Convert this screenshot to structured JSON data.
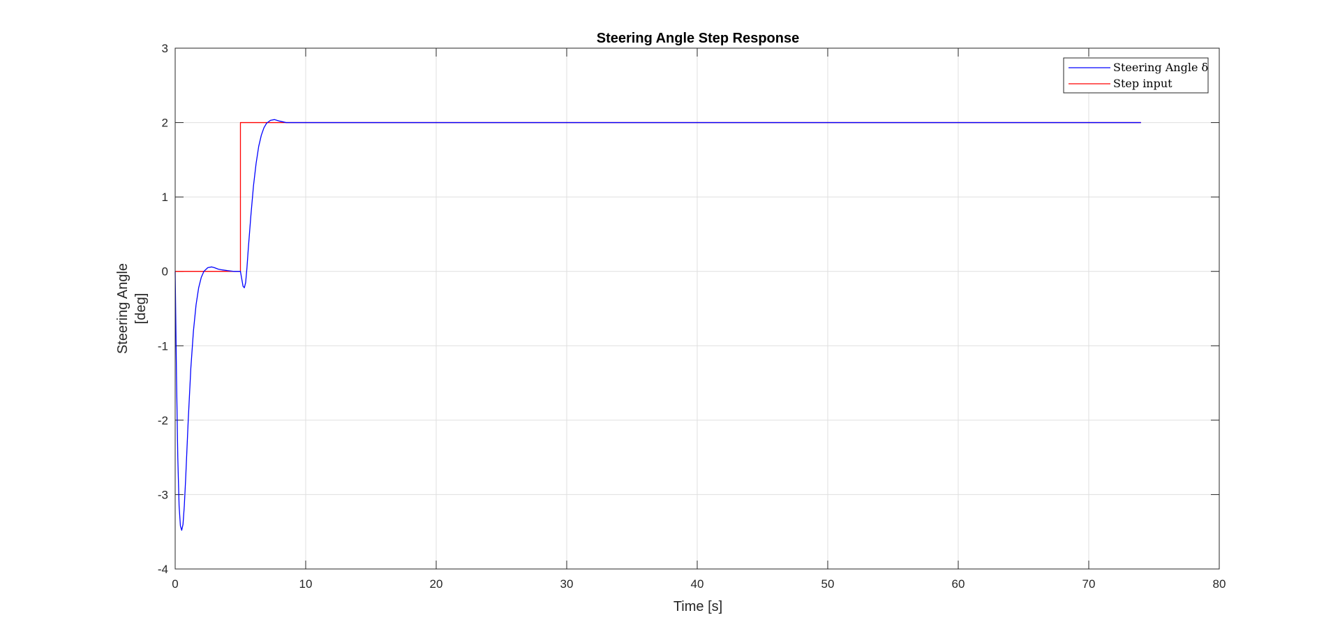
{
  "chart_data": {
    "type": "line",
    "title": "Steering Angle Step Response",
    "xlabel": "Time [s]",
    "ylabel_lines": [
      "Steering Angle",
      "[deg]"
    ],
    "xlim": [
      0,
      80
    ],
    "ylim": [
      -4,
      3
    ],
    "x_ticks": [
      0,
      10,
      20,
      30,
      40,
      50,
      60,
      70,
      80
    ],
    "y_ticks": [
      -4,
      -3,
      -2,
      -1,
      0,
      1,
      2,
      3
    ],
    "grid": true,
    "legend_position": "top-right",
    "series": [
      {
        "name": "Steering Angle δ",
        "color": "#0000ff",
        "x": [
          0,
          0.1,
          0.2,
          0.3,
          0.4,
          0.5,
          0.6,
          0.7,
          0.8,
          1.0,
          1.2,
          1.4,
          1.6,
          1.8,
          2.0,
          2.2,
          2.5,
          2.8,
          3.0,
          3.3,
          3.6,
          4.0,
          4.5,
          5.0,
          5.1,
          5.2,
          5.3,
          5.4,
          5.5,
          5.6,
          5.8,
          6.0,
          6.2,
          6.4,
          6.6,
          6.8,
          7.0,
          7.3,
          7.6,
          8.0,
          8.5,
          9.0,
          10,
          20,
          30,
          40,
          50,
          60,
          70,
          74
        ],
        "y": [
          0,
          -1.4,
          -2.5,
          -3.15,
          -3.42,
          -3.48,
          -3.4,
          -3.15,
          -2.8,
          -2.0,
          -1.3,
          -0.8,
          -0.45,
          -0.22,
          -0.08,
          0.0,
          0.05,
          0.06,
          0.05,
          0.03,
          0.02,
          0.01,
          0.0,
          0.0,
          -0.1,
          -0.2,
          -0.22,
          -0.15,
          0.05,
          0.3,
          0.75,
          1.15,
          1.45,
          1.68,
          1.83,
          1.93,
          1.99,
          2.03,
          2.04,
          2.02,
          2.0,
          2.0,
          2.0,
          2.0,
          2.0,
          2.0,
          2.0,
          2.0,
          2.0,
          2.0
        ]
      },
      {
        "name": "Step input",
        "color": "#ff0000",
        "x": [
          0,
          5,
          5,
          74
        ],
        "y": [
          0,
          0,
          2,
          2
        ]
      }
    ]
  }
}
